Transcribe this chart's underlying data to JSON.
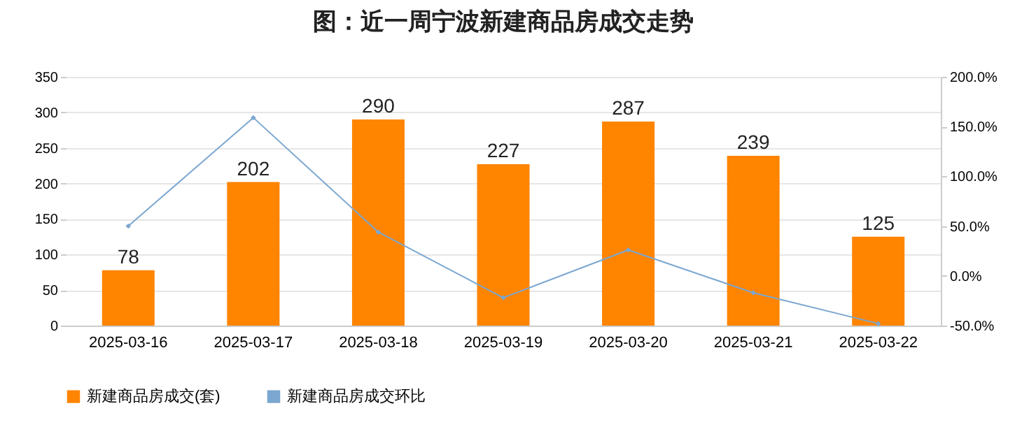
{
  "chart_data": {
    "type": "bar",
    "title": "图：近一周宁波新建商品房成交走势",
    "categories": [
      "2025-03-16",
      "2025-03-17",
      "2025-03-18",
      "2025-03-19",
      "2025-03-20",
      "2025-03-21",
      "2025-03-22"
    ],
    "series": [
      {
        "name": "新建商品房成交(套)",
        "color": "#ff8400",
        "values": [
          78,
          202,
          290,
          227,
          287,
          239,
          125
        ],
        "data_labels": true
      },
      {
        "name": "新建商品房成交环比",
        "type": "line",
        "axis": "y2",
        "color": "#7ba7d0",
        "values": [
          50,
          159,
          44,
          -22,
          26,
          -17,
          -48
        ]
      }
    ],
    "ylim": [
      0,
      350
    ],
    "yticks": [
      0,
      50,
      100,
      150,
      200,
      250,
      300,
      350
    ],
    "y2lim": [
      -50,
      200
    ],
    "y2ticks": [
      {
        "value": -50,
        "label": "-50.0%"
      },
      {
        "value": 0,
        "label": "0.0%"
      },
      {
        "value": 50,
        "label": "50.0%"
      },
      {
        "value": 100,
        "label": "100.0%"
      },
      {
        "value": 150,
        "label": "150.0%"
      },
      {
        "value": 200,
        "label": "200.0%"
      }
    ],
    "grid": "y",
    "legend": "bottom",
    "marker": "diamond",
    "line_style": "solid"
  }
}
